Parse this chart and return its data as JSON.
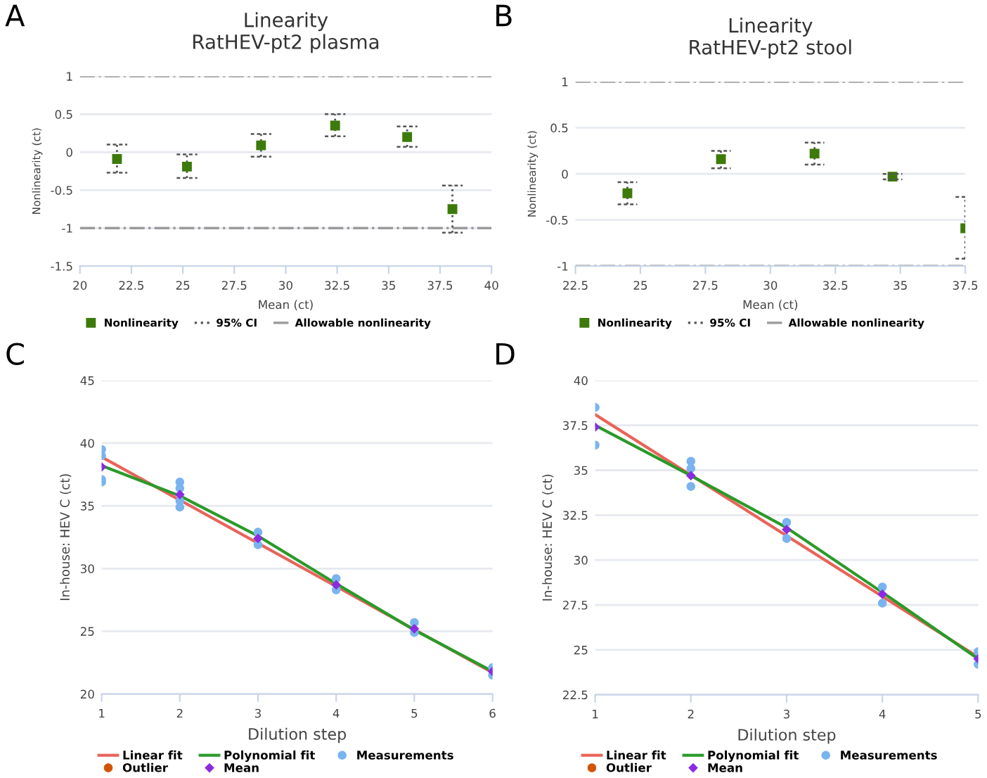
{
  "chart_data": [
    {
      "type": "scatter",
      "title": "Linearity\nRatHEV-pt2 plasma",
      "xlabel": "Mean (ct)",
      "ylabel": "Nonlinearity (ct)",
      "annotations": [
        "A",
        "95% CI"
      ],
      "xlim": [
        20,
        40
      ],
      "xticks": [
        20,
        22.5,
        25,
        27.5,
        30,
        32.5,
        35,
        37.5,
        40
      ],
      "ylim": [
        -1.5,
        1
      ],
      "yticks": [
        -1.5,
        -1,
        -0.5,
        0,
        0.5,
        1
      ],
      "grid": "y",
      "legend": "bottom",
      "marker": "square",
      "ref_lines": [
        {
          "axis": "y",
          "value": 1,
          "label": "Allowable nonlinearity",
          "color": "#9a9a9a",
          "line_style": "dashdot"
        },
        {
          "axis": "y",
          "value": -1,
          "color": "#9a9a9a",
          "line_style": "dashdot"
        }
      ],
      "series": [
        {
          "name": "Nonlinearity",
          "color": "#3d7a0a",
          "x": [
            21.8,
            25.2,
            28.8,
            32.4,
            35.9,
            38.1
          ],
          "values": [
            -0.09,
            -0.19,
            0.09,
            0.35,
            0.2,
            -0.75
          ],
          "errors": [
            [
              -0.27,
              0.1
            ],
            [
              -0.34,
              -0.03
            ],
            [
              -0.06,
              0.24
            ],
            [
              0.21,
              0.5
            ],
            [
              0.07,
              0.34
            ],
            [
              -1.06,
              -0.44
            ]
          ]
        }
      ]
    },
    {
      "type": "scatter",
      "title": "Linearity\nRatHEV-pt2 stool",
      "xlabel": "Mean (ct)",
      "ylabel": "Nonlinearity (ct)",
      "annotations": [
        "B",
        "95% CI"
      ],
      "xlim": [
        22.5,
        37.5
      ],
      "xticks": [
        22.5,
        25,
        27.5,
        30,
        32.5,
        35,
        37.5
      ],
      "ylim": [
        -1,
        1
      ],
      "yticks": [
        -1,
        -0.5,
        0,
        0.5,
        1
      ],
      "grid": "y",
      "legend": "bottom",
      "marker": "square",
      "ref_lines": [
        {
          "axis": "y",
          "value": 1,
          "label": "Allowable nonlinearity",
          "color": "#9a9a9a",
          "line_style": "dashdot"
        },
        {
          "axis": "y",
          "value": -1,
          "color": "#9a9a9a",
          "line_style": "dashdot"
        }
      ],
      "series": [
        {
          "name": "Nonlinearity",
          "color": "#3d7a0a",
          "x": [
            24.5,
            28.1,
            31.7,
            34.7,
            37.5
          ],
          "values": [
            -0.21,
            0.16,
            0.22,
            -0.03,
            -0.59
          ],
          "errors": [
            [
              -0.33,
              -0.09
            ],
            [
              0.06,
              0.25
            ],
            [
              0.1,
              0.34
            ],
            [
              -0.06,
              0.0
            ],
            [
              -0.92,
              -0.25
            ]
          ]
        }
      ]
    },
    {
      "type": "scatter",
      "xlabel": "Dilution step",
      "ylabel": "In-house: HEV C (ct)",
      "annotations": [
        "C"
      ],
      "xlim": [
        1,
        6
      ],
      "xticks": [
        1,
        2,
        3,
        4,
        5,
        6
      ],
      "ylim": [
        20,
        45
      ],
      "yticks": [
        20,
        25,
        30,
        35,
        40,
        45
      ],
      "grid": "y",
      "legend": "bottom",
      "series": [
        {
          "name": "Linear fit",
          "type": "line",
          "color": "#e8645a",
          "x": [
            1,
            6
          ],
          "values": [
            38.9,
            21.7
          ]
        },
        {
          "name": "Polynomial fit",
          "type": "line",
          "color": "#2a9a2a",
          "x": [
            1,
            2,
            3,
            4,
            5,
            6
          ],
          "values": [
            38.2,
            35.8,
            32.6,
            28.8,
            25.1,
            21.8
          ]
        },
        {
          "name": "Measurements",
          "type": "scatter",
          "marker": "circle",
          "color": "#7ab4ef",
          "x": [
            1,
            1,
            1,
            1,
            2,
            2,
            2,
            2,
            3,
            3,
            4,
            4,
            5,
            5,
            6,
            6
          ],
          "values": [
            39.5,
            39.0,
            37.1,
            36.9,
            36.9,
            36.4,
            35.4,
            34.9,
            32.9,
            31.9,
            29.2,
            28.3,
            25.7,
            24.9,
            22.1,
            21.5
          ]
        },
        {
          "name": "Outlier",
          "type": "scatter",
          "marker": "circle",
          "color": "#d35400"
        },
        {
          "name": "Mean",
          "type": "scatter",
          "marker": "diamond",
          "color": "#8a2be2",
          "x": [
            1,
            2,
            3,
            4,
            5,
            6
          ],
          "values": [
            38.1,
            35.9,
            32.4,
            28.7,
            25.2,
            21.8
          ]
        }
      ]
    },
    {
      "type": "scatter",
      "xlabel": "Dilution step",
      "ylabel": "In-house: HEV C (ct)",
      "annotations": [
        "D"
      ],
      "xlim": [
        1,
        5
      ],
      "xticks": [
        1,
        2,
        3,
        4,
        5
      ],
      "ylim": [
        22.5,
        40
      ],
      "yticks": [
        22.5,
        25,
        27.5,
        30,
        32.5,
        35,
        37.5,
        40
      ],
      "grid": "y",
      "legend": "bottom",
      "series": [
        {
          "name": "Linear fit",
          "type": "line",
          "color": "#e8645a",
          "x": [
            1,
            5
          ],
          "values": [
            38.1,
            24.6
          ]
        },
        {
          "name": "Polynomial fit",
          "type": "line",
          "color": "#2a9a2a",
          "x": [
            1,
            2,
            3,
            4,
            5
          ],
          "values": [
            37.5,
            34.7,
            31.8,
            28.2,
            24.5
          ]
        },
        {
          "name": "Measurements",
          "type": "scatter",
          "marker": "circle",
          "color": "#7ab4ef",
          "x": [
            1,
            1,
            2,
            2,
            2,
            3,
            3,
            4,
            4,
            5,
            5
          ],
          "values": [
            38.5,
            36.4,
            35.5,
            34.1,
            35.1,
            32.1,
            31.2,
            28.5,
            27.6,
            24.9,
            24.2
          ]
        },
        {
          "name": "Outlier",
          "type": "scatter",
          "marker": "circle",
          "color": "#d35400"
        },
        {
          "name": "Mean",
          "type": "scatter",
          "marker": "diamond",
          "color": "#8a2be2",
          "x": [
            1,
            2,
            3,
            4,
            5
          ],
          "values": [
            37.4,
            34.7,
            31.7,
            28.1,
            24.5
          ]
        }
      ]
    }
  ]
}
